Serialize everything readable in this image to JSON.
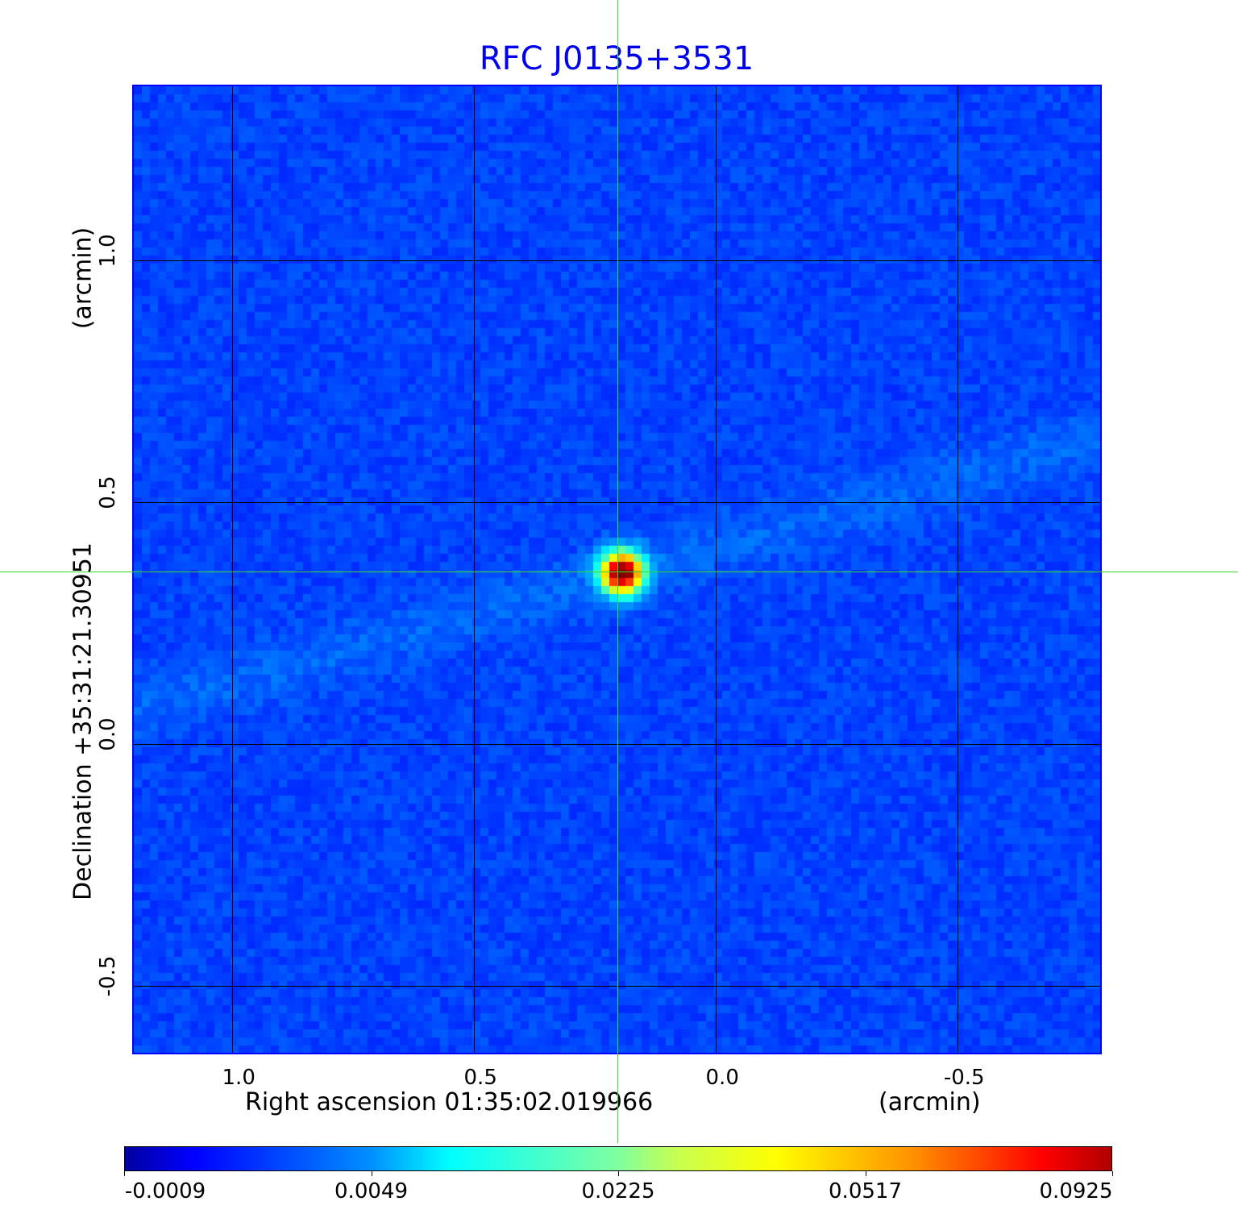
{
  "chart_data": {
    "type": "heatmap",
    "title": "RFC J0135+3531",
    "xlabel": "Right ascension  01:35:02.019966",
    "xunit": "(arcmin)",
    "ylabel": "Declination  +35:31:21.30951",
    "yunit": "(arcmin)",
    "xlim": [
      1.207,
      -0.798
    ],
    "ylim": [
      -0.642,
      1.363
    ],
    "x_ticks": [
      "1.0",
      "0.5",
      "0.0",
      "-0.5"
    ],
    "x_tick_values": [
      1.0,
      0.5,
      0.0,
      -0.5
    ],
    "y_ticks": [
      "1.0",
      "0.5",
      "0.0",
      "-0.5"
    ],
    "y_tick_values": [
      1.0,
      0.5,
      0.0,
      -0.5
    ],
    "grid": true,
    "colormap": "jet",
    "colorbar_ticks": [
      "-0.0009",
      "0.0049",
      "0.0225",
      "0.0517",
      "0.0925"
    ],
    "colorbar_range": [
      -0.0009,
      0.0925
    ],
    "source": {
      "x": 0.197,
      "y": 0.357,
      "peak": 0.0925
    },
    "crosshair": {
      "x": 0.2,
      "y": 0.355,
      "color": "#33dd33"
    },
    "background_level": 0.0
  }
}
